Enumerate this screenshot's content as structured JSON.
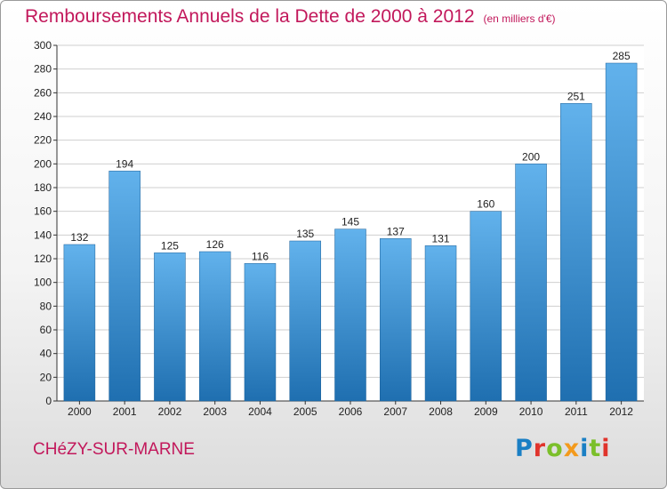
{
  "title": "Remboursements Annuels de la Dette de 2000 à 2012",
  "unit": "(en milliers d'€)",
  "commune": "CHéZY-SUR-MARNE",
  "logo": {
    "text": "Proxiti",
    "letters": [
      {
        "ch": "P",
        "color": "#1a7fc4"
      },
      {
        "ch": "r",
        "color": "#e0342c"
      },
      {
        "ch": "o",
        "color": "#7bbf2a"
      },
      {
        "ch": "x",
        "color": "#f39a1c"
      },
      {
        "ch": "i",
        "color": "#1a7fc4"
      },
      {
        "ch": "t",
        "color": "#7bbf2a"
      },
      {
        "ch": "i",
        "color": "#e0342c"
      }
    ]
  },
  "colors": {
    "title": "#c2185b",
    "bar_top": "#62b2ec",
    "bar_bottom": "#1f6fb0",
    "grid": "#cfcfcf",
    "axis": "#333333"
  },
  "chart_data": {
    "type": "bar",
    "title": "Remboursements Annuels de la Dette de 2000 à 2012",
    "xlabel": "",
    "ylabel": "",
    "categories": [
      "2000",
      "2001",
      "2002",
      "2003",
      "2004",
      "2005",
      "2006",
      "2007",
      "2008",
      "2009",
      "2010",
      "2011",
      "2012"
    ],
    "values": [
      132,
      194,
      125,
      126,
      116,
      135,
      145,
      137,
      131,
      160,
      200,
      251,
      285
    ],
    "ylim": [
      0,
      300
    ],
    "ytick_step": 20,
    "grid": true,
    "legend": "none"
  }
}
